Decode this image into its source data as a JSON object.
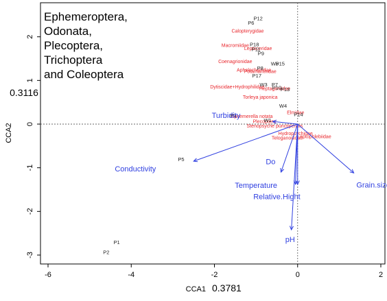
{
  "chart_data": {
    "type": "scatter",
    "title": "",
    "inset_text": [
      "Ephemeroptera,",
      "Odonata,",
      "Plecoptera,",
      "Trichoptera",
      "and Coleoptera"
    ],
    "xlabel": "CCA1",
    "xlabel_value": "0.3781",
    "ylabel": "CCA2",
    "ylabel_value": "0.3116",
    "xlim": [
      -6.5,
      2.2
    ],
    "ylim": [
      -3.3,
      2.6
    ],
    "x_ticks": [
      -6,
      -4,
      -2,
      0,
      2
    ],
    "y_ticks": [
      -3,
      -2,
      -1,
      0,
      1,
      2
    ],
    "colors": {
      "sites": "#222222",
      "taxa": "#e8262c",
      "env": "#2f3fe0",
      "axis": "#000000"
    },
    "sites": [
      {
        "label": "P12",
        "x": -0.95,
        "y": 2.38
      },
      {
        "label": "P6",
        "x": -1.12,
        "y": 2.28
      },
      {
        "label": "P18",
        "x": -1.04,
        "y": 1.78
      },
      {
        "label": "P11",
        "x": -1.0,
        "y": 1.67
      },
      {
        "label": "P9",
        "x": -0.88,
        "y": 1.58
      },
      {
        "label": "W5",
        "x": -0.55,
        "y": 1.34
      },
      {
        "label": "P15",
        "x": -0.42,
        "y": 1.34
      },
      {
        "label": "P8",
        "x": -0.9,
        "y": 1.24
      },
      {
        "label": "P17",
        "x": -0.98,
        "y": 1.07
      },
      {
        "label": "W3",
        "x": -0.82,
        "y": 0.86
      },
      {
        "label": "P7",
        "x": -0.55,
        "y": 0.86
      },
      {
        "label": "P10",
        "x": -0.5,
        "y": 0.79
      },
      {
        "label": "P13",
        "x": -0.3,
        "y": 0.75
      },
      {
        "label": "W4",
        "x": -0.35,
        "y": 0.38
      },
      {
        "label": "P14",
        "x": 0.02,
        "y": 0.18
      },
      {
        "label": "P3",
        "x": -1.55,
        "y": 0.16
      },
      {
        "label": "W1",
        "x": -0.72,
        "y": 0.05
      },
      {
        "label": "P5",
        "x": -2.8,
        "y": -0.85
      },
      {
        "label": "P1",
        "x": -4.35,
        "y": -2.75
      },
      {
        "label": "P2",
        "x": -4.6,
        "y": -2.98
      }
    ],
    "taxa": [
      {
        "label": "Calopterygidae",
        "x": -1.2,
        "y": 2.1
      },
      {
        "label": "Macromiidae",
        "x": -1.5,
        "y": 1.77
      },
      {
        "label": "Leptoceridae",
        "x": -0.95,
        "y": 1.7
      },
      {
        "label": "Coenagrionidae",
        "x": -1.5,
        "y": 1.4
      },
      {
        "label": "Aphelocheiridae",
        "x": -1.05,
        "y": 1.2
      },
      {
        "label": "Potamanthidae",
        "x": -0.9,
        "y": 1.17
      },
      {
        "label": "Dytiscidae+Hydrophilidae",
        "x": -1.45,
        "y": 0.82
      },
      {
        "label": "Heptageniidae",
        "x": -0.55,
        "y": 0.78
      },
      {
        "label": "Torleya japonica",
        "x": -0.9,
        "y": 0.58
      },
      {
        "label": "Elmidae",
        "x": -0.05,
        "y": 0.23
      },
      {
        "label": "Ephemerella notata",
        "x": -1.1,
        "y": 0.14
      },
      {
        "label": "Plecoptera",
        "x": -0.8,
        "y": 0.02
      },
      {
        "label": "Stenopsyche punctipennis",
        "x": -0.55,
        "y": -0.08
      },
      {
        "label": "Hydropsychidae",
        "x": -0.05,
        "y": -0.25
      },
      {
        "label": "Teloganodidae",
        "x": -0.25,
        "y": -0.35
      },
      {
        "label": "Leptophlebiidae",
        "x": 0.4,
        "y": -0.32
      }
    ],
    "env_vectors": [
      {
        "label": "Turbidity",
        "x": -0.6,
        "y": 0.06,
        "lx": -1.72,
        "ly": 0.14
      },
      {
        "label": "Conductivity",
        "x": -2.5,
        "y": -0.85,
        "lx": -3.9,
        "ly": -1.08
      },
      {
        "label": "Do",
        "x": -0.4,
        "y": -1.1,
        "lx": -0.65,
        "ly": -0.92
      },
      {
        "label": "Temperature",
        "x": -0.05,
        "y": -1.38,
        "lx": -1.0,
        "ly": -1.46
      },
      {
        "label": "Relative.Hight",
        "x": 0.0,
        "y": -1.38,
        "lx": -0.5,
        "ly": -1.72
      },
      {
        "label": "pH",
        "x": -0.15,
        "y": -2.42,
        "lx": -0.18,
        "ly": -2.7
      },
      {
        "label": "Grain.size",
        "x": 1.35,
        "y": -1.12,
        "lx": 1.82,
        "ly": -1.45
      }
    ]
  }
}
